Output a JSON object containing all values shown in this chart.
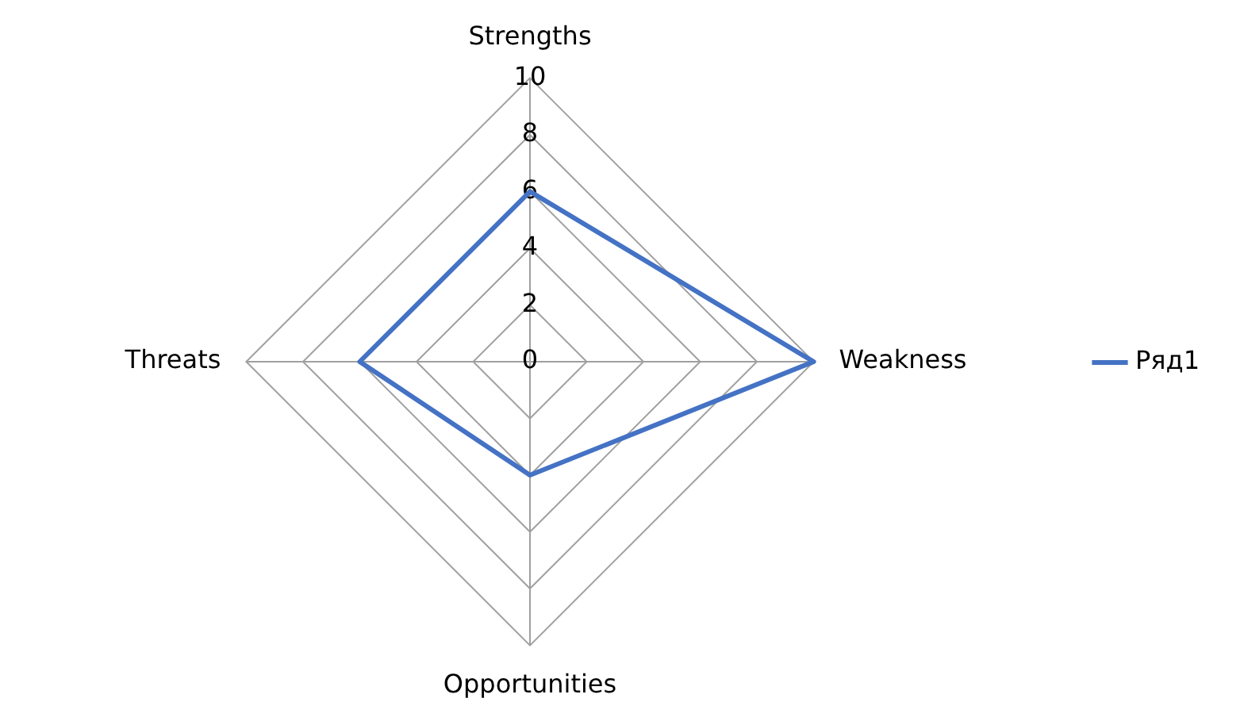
{
  "chart_data": {
    "type": "radar",
    "categories": [
      "Strengths",
      "Weakness",
      "Opportunities",
      "Threats"
    ],
    "series": [
      {
        "name": "Ряд1",
        "color": "#4472c4",
        "values": [
          6,
          10,
          4,
          6
        ]
      }
    ],
    "ylim": [
      0,
      10
    ],
    "yticks": [
      0,
      2,
      4,
      6,
      8,
      10
    ],
    "grid": true,
    "legend": "right",
    "marker": "none"
  }
}
